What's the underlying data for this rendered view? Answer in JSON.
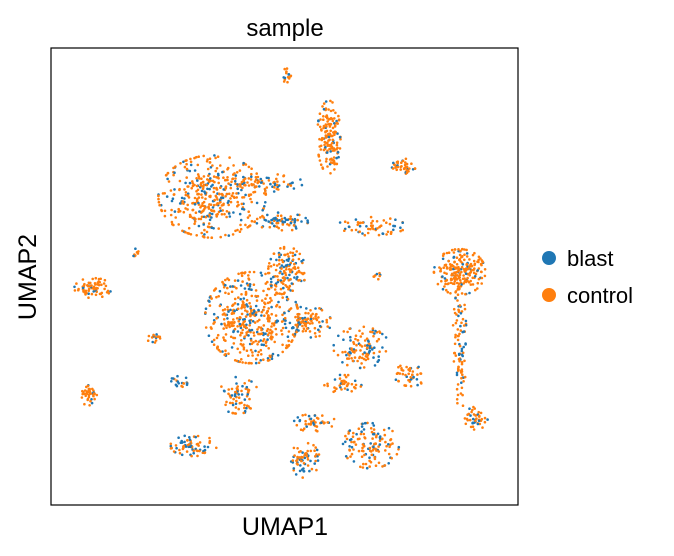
{
  "chart_data": {
    "type": "scatter",
    "title": "sample",
    "xlabel": "UMAP1",
    "ylabel": "UMAP2",
    "xlim": [
      0,
      100
    ],
    "ylim": [
      0,
      100
    ],
    "grid": false,
    "ticks": false,
    "legend_position": "right",
    "series": [
      {
        "name": "blast",
        "color": "#1f77b4"
      },
      {
        "name": "control",
        "color": "#ff7f0e"
      }
    ],
    "clusters": [
      {
        "cx": 34.5,
        "cy": 67.5,
        "rx": 11.5,
        "ry": 9.0,
        "n": 420,
        "blast": 0.22
      },
      {
        "cx": 59.5,
        "cy": 80.5,
        "rx": 2.5,
        "ry": 8.0,
        "n": 160,
        "blast": 0.18
      },
      {
        "cx": 45.0,
        "cy": 70.5,
        "rx": 9.0,
        "ry": 2.0,
        "n": 70,
        "blast": 0.45
      },
      {
        "cx": 75.5,
        "cy": 74.0,
        "rx": 2.5,
        "ry": 1.8,
        "n": 40,
        "blast": 0.15
      },
      {
        "cx": 49.5,
        "cy": 62.0,
        "rx": 5.5,
        "ry": 2.0,
        "n": 70,
        "blast": 0.5
      },
      {
        "cx": 68.5,
        "cy": 61.0,
        "rx": 7.5,
        "ry": 2.0,
        "n": 60,
        "blast": 0.25
      },
      {
        "cx": 50.5,
        "cy": 51.0,
        "rx": 4.0,
        "ry": 5.5,
        "n": 130,
        "blast": 0.3
      },
      {
        "cx": 43.0,
        "cy": 41.0,
        "rx": 10.0,
        "ry": 10.0,
        "n": 460,
        "blast": 0.25
      },
      {
        "cx": 55.0,
        "cy": 40.0,
        "rx": 5.0,
        "ry": 3.5,
        "n": 90,
        "blast": 0.25
      },
      {
        "cx": 87.5,
        "cy": 51.0,
        "rx": 5.5,
        "ry": 5.0,
        "n": 230,
        "blast": 0.12
      },
      {
        "cx": 91.0,
        "cy": 19.0,
        "rx": 2.5,
        "ry": 2.5,
        "n": 45,
        "blast": 0.2
      },
      {
        "cx": 9.0,
        "cy": 47.5,
        "rx": 4.0,
        "ry": 2.2,
        "n": 70,
        "blast": 0.15
      },
      {
        "cx": 8.0,
        "cy": 24.0,
        "rx": 1.8,
        "ry": 2.2,
        "n": 40,
        "blast": 0.2
      },
      {
        "cx": 30.5,
        "cy": 13.0,
        "rx": 5.0,
        "ry": 2.3,
        "n": 70,
        "blast": 0.4
      },
      {
        "cx": 40.0,
        "cy": 24.0,
        "rx": 4.5,
        "ry": 4.0,
        "n": 70,
        "blast": 0.3
      },
      {
        "cx": 27.5,
        "cy": 27.0,
        "rx": 2.0,
        "ry": 1.2,
        "n": 20,
        "blast": 0.5
      },
      {
        "cx": 66.5,
        "cy": 34.5,
        "rx": 6.0,
        "ry": 4.5,
        "n": 110,
        "blast": 0.35
      },
      {
        "cx": 62.5,
        "cy": 26.5,
        "rx": 4.0,
        "ry": 2.0,
        "n": 40,
        "blast": 0.25
      },
      {
        "cx": 77.0,
        "cy": 28.5,
        "rx": 3.5,
        "ry": 2.5,
        "n": 45,
        "blast": 0.2
      },
      {
        "cx": 54.0,
        "cy": 10.0,
        "rx": 3.5,
        "ry": 4.0,
        "n": 70,
        "blast": 0.35
      },
      {
        "cx": 56.5,
        "cy": 18.0,
        "rx": 4.5,
        "ry": 2.0,
        "n": 45,
        "blast": 0.3
      },
      {
        "cx": 68.5,
        "cy": 13.0,
        "rx": 6.0,
        "ry": 5.0,
        "n": 130,
        "blast": 0.35
      },
      {
        "cx": 22.0,
        "cy": 36.5,
        "rx": 1.5,
        "ry": 1.0,
        "n": 15,
        "blast": 0.2
      },
      {
        "cx": 50.5,
        "cy": 94.0,
        "rx": 1.2,
        "ry": 1.5,
        "n": 15,
        "blast": 0.2
      },
      {
        "cx": 70.0,
        "cy": 50.0,
        "rx": 1.0,
        "ry": 0.8,
        "n": 8,
        "blast": 0.2
      },
      {
        "cx": 18.0,
        "cy": 55.0,
        "rx": 1.2,
        "ry": 1.2,
        "n": 8,
        "blast": 0.4
      },
      {
        "cx": 87.5,
        "cy": 34.0,
        "rx": 1.5,
        "ry": 14.0,
        "n": 90,
        "blast": 0.3
      }
    ]
  }
}
